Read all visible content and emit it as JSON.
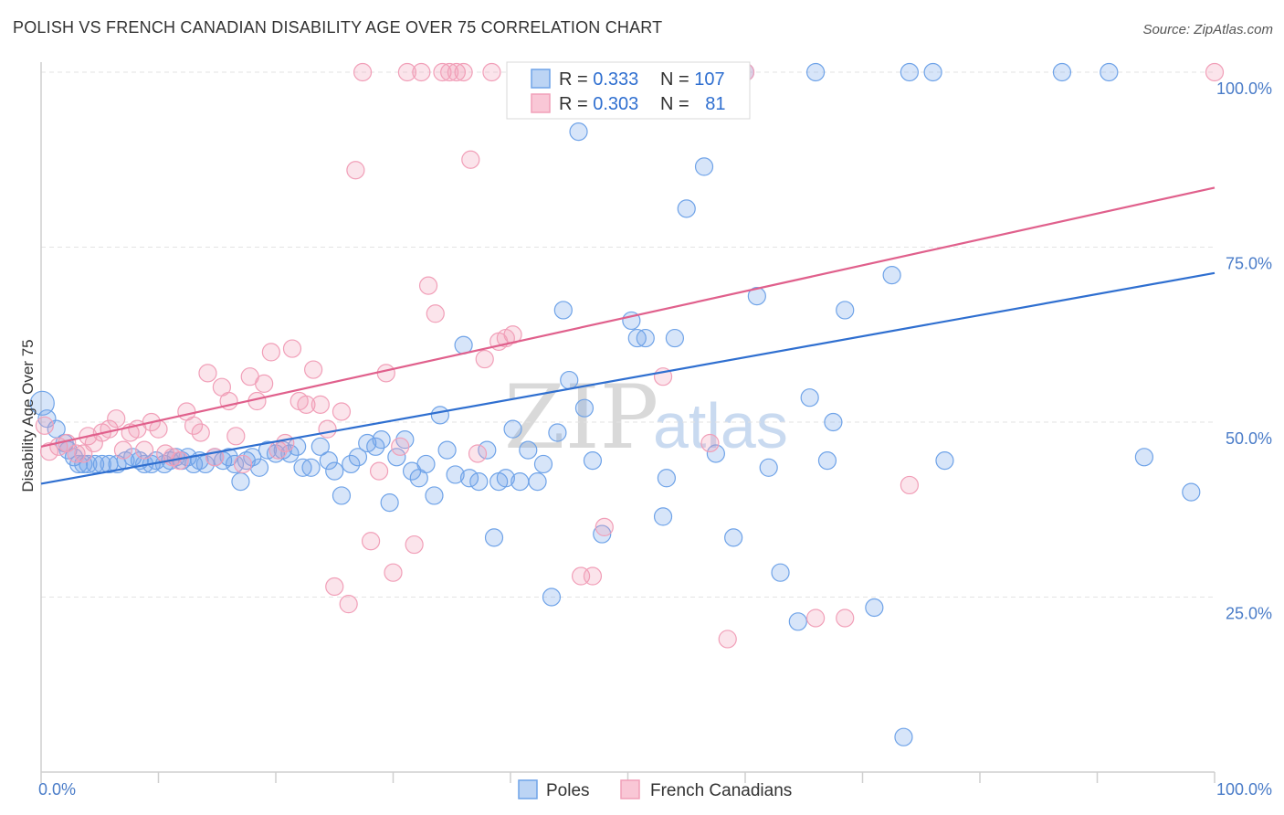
{
  "title": "POLISH VS FRENCH CANADIAN DISABILITY AGE OVER 75 CORRELATION CHART",
  "source": "Source: ZipAtlas.com",
  "watermark": {
    "zip": "ZIP",
    "atlas": "atlas"
  },
  "chart_data": {
    "type": "scatter",
    "xlabel": "",
    "ylabel": "Disability Age Over 75",
    "xlim": [
      0,
      100
    ],
    "ylim": [
      0,
      100
    ],
    "x_tick_labels": {
      "left": "0.0%",
      "right": "100.0%"
    },
    "y_ticks": [
      {
        "value": 25,
        "label": "25.0%"
      },
      {
        "value": 50,
        "label": "50.0%"
      },
      {
        "value": 75,
        "label": "75.0%"
      },
      {
        "value": 100,
        "label": "100.0%"
      }
    ],
    "grid": true,
    "legend": {
      "position": "top-center",
      "rows": [
        {
          "r_label": "R = ",
          "r": "0.333",
          "n_label": "N = ",
          "n": "107"
        },
        {
          "r_label": "R = ",
          "r": "0.303",
          "n_label": "N = ",
          "n": "81"
        }
      ]
    },
    "series": [
      {
        "name": "Poles",
        "color": "#6fa3e8",
        "line_color": "#2f6fd0",
        "trend": {
          "x": [
            0,
            100
          ],
          "y": [
            41.2,
            71.3
          ]
        },
        "points": [
          [
            0.1,
            52.7
          ],
          [
            0.5,
            50.5
          ],
          [
            1.3,
            49
          ],
          [
            2,
            47
          ],
          [
            2.3,
            46
          ],
          [
            2.8,
            45
          ],
          [
            3.2,
            44
          ],
          [
            3.6,
            44
          ],
          [
            4,
            44
          ],
          [
            4.6,
            44
          ],
          [
            5.2,
            44
          ],
          [
            5.8,
            44
          ],
          [
            6.5,
            44
          ],
          [
            7.2,
            44.5
          ],
          [
            7.8,
            45
          ],
          [
            8.4,
            44.5
          ],
          [
            8.8,
            44
          ],
          [
            9.4,
            44
          ],
          [
            9.8,
            44.5
          ],
          [
            10.5,
            44
          ],
          [
            11,
            44.5
          ],
          [
            11.5,
            45
          ],
          [
            12,
            44.5
          ],
          [
            12.5,
            45
          ],
          [
            13,
            44
          ],
          [
            13.5,
            44.5
          ],
          [
            14,
            44
          ],
          [
            14.8,
            45
          ],
          [
            15.5,
            44.5
          ],
          [
            16,
            45
          ],
          [
            16.5,
            44
          ],
          [
            17,
            41.5
          ],
          [
            17.5,
            44.5
          ],
          [
            18,
            45
          ],
          [
            18.6,
            43.5
          ],
          [
            19.3,
            46
          ],
          [
            20,
            45.5
          ],
          [
            20.6,
            46
          ],
          [
            21.2,
            45.5
          ],
          [
            21.8,
            46.5
          ],
          [
            22.3,
            43.5
          ],
          [
            23,
            43.5
          ],
          [
            23.8,
            46.5
          ],
          [
            24.5,
            44.5
          ],
          [
            25,
            43
          ],
          [
            25.6,
            39.5
          ],
          [
            26.4,
            44
          ],
          [
            27,
            45
          ],
          [
            27.8,
            47
          ],
          [
            28.5,
            46.5
          ],
          [
            29,
            47.5
          ],
          [
            29.7,
            38.5
          ],
          [
            30.3,
            45
          ],
          [
            31,
            47.5
          ],
          [
            31.6,
            43
          ],
          [
            32.2,
            42
          ],
          [
            32.8,
            44
          ],
          [
            33.5,
            39.5
          ],
          [
            34,
            51
          ],
          [
            34.6,
            46
          ],
          [
            35.3,
            42.5
          ],
          [
            36,
            61
          ],
          [
            36.5,
            42
          ],
          [
            37.3,
            41.5
          ],
          [
            38,
            46
          ],
          [
            38.6,
            33.5
          ],
          [
            39,
            41.5
          ],
          [
            39.6,
            42
          ],
          [
            40.2,
            49
          ],
          [
            40.8,
            41.5
          ],
          [
            41.5,
            46
          ],
          [
            42.3,
            41.5
          ],
          [
            42.8,
            44
          ],
          [
            43.5,
            25
          ],
          [
            44,
            48.5
          ],
          [
            44.5,
            66
          ],
          [
            45,
            56
          ],
          [
            45.8,
            91.5
          ],
          [
            46.3,
            52
          ],
          [
            47,
            44.5
          ],
          [
            47.8,
            34
          ],
          [
            48.5,
            100
          ],
          [
            49,
            100
          ],
          [
            50,
            100
          ],
          [
            50.3,
            64.5
          ],
          [
            50.8,
            62
          ],
          [
            51.5,
            62
          ],
          [
            52,
            100
          ],
          [
            53,
            36.5
          ],
          [
            53.3,
            42
          ],
          [
            54,
            62
          ],
          [
            54.5,
            100
          ],
          [
            55,
            80.5
          ],
          [
            56,
            100
          ],
          [
            56.5,
            86.5
          ],
          [
            57.5,
            45.5
          ],
          [
            58,
            100
          ],
          [
            59,
            33.5
          ],
          [
            60,
            100
          ],
          [
            61,
            68
          ],
          [
            62,
            43.5
          ],
          [
            63,
            28.5
          ],
          [
            64.5,
            21.5
          ],
          [
            65.5,
            53.5
          ],
          [
            66,
            100
          ],
          [
            67,
            44.5
          ],
          [
            67.5,
            50
          ],
          [
            68.5,
            66
          ],
          [
            71,
            23.5
          ],
          [
            72.5,
            71
          ],
          [
            73.5,
            5
          ],
          [
            74,
            100
          ],
          [
            76,
            100
          ],
          [
            77,
            44.5
          ],
          [
            87,
            100
          ],
          [
            91,
            100
          ],
          [
            94,
            45
          ],
          [
            98,
            40
          ]
        ]
      },
      {
        "name": "French Canadians",
        "color": "#f19fb8",
        "line_color": "#e0608c",
        "trend": {
          "x": [
            0,
            100
          ],
          "y": [
            46.5,
            83.5
          ]
        },
        "points": [
          [
            0.3,
            49.5
          ],
          [
            0.7,
            45.8
          ],
          [
            1.5,
            46.5
          ],
          [
            2.2,
            47
          ],
          [
            3,
            45.5
          ],
          [
            3.6,
            45.5
          ],
          [
            4,
            48
          ],
          [
            4.5,
            47
          ],
          [
            5.2,
            48.5
          ],
          [
            5.8,
            49
          ],
          [
            6.4,
            50.5
          ],
          [
            7,
            46
          ],
          [
            7.6,
            48.5
          ],
          [
            8.2,
            49
          ],
          [
            8.8,
            46
          ],
          [
            9.4,
            50
          ],
          [
            10,
            49
          ],
          [
            10.6,
            45.5
          ],
          [
            11.2,
            45
          ],
          [
            11.8,
            44.5
          ],
          [
            12.4,
            51.5
          ],
          [
            13,
            49.5
          ],
          [
            13.6,
            48.5
          ],
          [
            14.2,
            57
          ],
          [
            14.8,
            45
          ],
          [
            15.4,
            55
          ],
          [
            16,
            53
          ],
          [
            16.6,
            48
          ],
          [
            17.2,
            44
          ],
          [
            17.8,
            56.5
          ],
          [
            18.4,
            53
          ],
          [
            19,
            55.5
          ],
          [
            19.6,
            60
          ],
          [
            20.2,
            46
          ],
          [
            20.8,
            47
          ],
          [
            21.4,
            60.5
          ],
          [
            22,
            53
          ],
          [
            22.6,
            52.5
          ],
          [
            23.2,
            57.5
          ],
          [
            23.8,
            52.5
          ],
          [
            24.4,
            49
          ],
          [
            25,
            26.5
          ],
          [
            25.6,
            51.5
          ],
          [
            26.2,
            24
          ],
          [
            26.8,
            86
          ],
          [
            27.4,
            100
          ],
          [
            28.1,
            33
          ],
          [
            28.8,
            43
          ],
          [
            29.4,
            57
          ],
          [
            30,
            28.5
          ],
          [
            30.6,
            46.5
          ],
          [
            31.2,
            100
          ],
          [
            31.8,
            32.5
          ],
          [
            32.4,
            100
          ],
          [
            33,
            69.5
          ],
          [
            33.6,
            65.5
          ],
          [
            34.2,
            100
          ],
          [
            34.8,
            100
          ],
          [
            35.4,
            100
          ],
          [
            36,
            100
          ],
          [
            36.6,
            87.5
          ],
          [
            37.2,
            45.5
          ],
          [
            37.8,
            59
          ],
          [
            38.4,
            100
          ],
          [
            39,
            61.5
          ],
          [
            39.6,
            62
          ],
          [
            40.2,
            62.5
          ],
          [
            40.8,
            100
          ],
          [
            41.4,
            100
          ],
          [
            42,
            100
          ],
          [
            43,
            100
          ],
          [
            46,
            28
          ],
          [
            47,
            28
          ],
          [
            48,
            35
          ],
          [
            53,
            56.5
          ],
          [
            57,
            47
          ],
          [
            57.5,
            100
          ],
          [
            58.5,
            19
          ],
          [
            60,
            100
          ],
          [
            66,
            22
          ],
          [
            68.5,
            22
          ],
          [
            74,
            41
          ],
          [
            100,
            100
          ]
        ]
      }
    ]
  }
}
